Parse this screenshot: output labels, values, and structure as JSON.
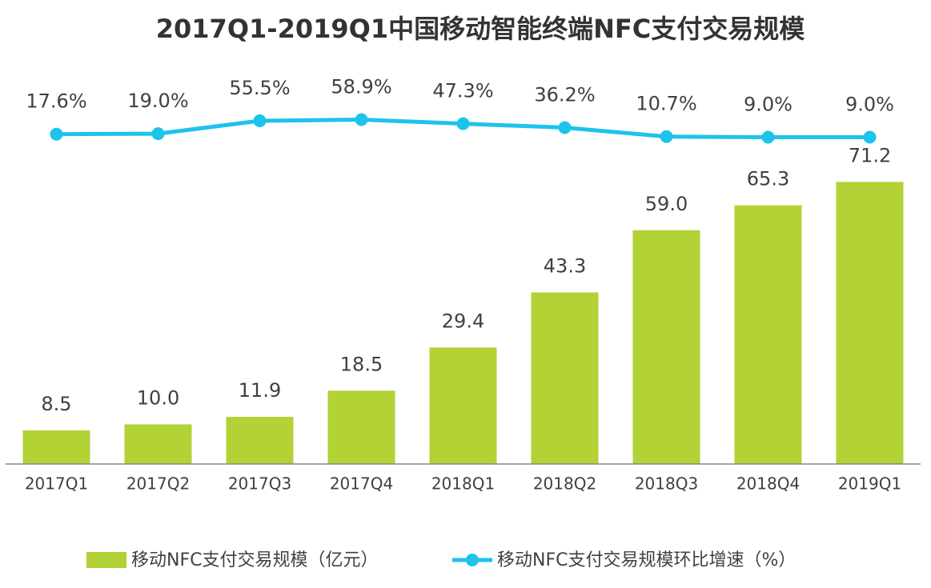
{
  "chart_data": {
    "type": "bar-line",
    "title": "2017Q1-2019Q1中国移动智能终端NFC支付交易规模",
    "categories": [
      "2017Q1",
      "2017Q2",
      "2017Q3",
      "2017Q4",
      "2018Q1",
      "2018Q2",
      "2018Q3",
      "2018Q4",
      "2019Q1"
    ],
    "series": [
      {
        "name": "移动NFC支付交易规模（亿元）",
        "type": "bar",
        "color": "#b2d235",
        "values": [
          8.5,
          10.0,
          11.9,
          18.5,
          29.4,
          43.3,
          59.0,
          65.3,
          71.2
        ],
        "value_labels": [
          "8.5",
          "10.0",
          "11.9",
          "18.5",
          "29.4",
          "43.3",
          "59.0",
          "65.3",
          "71.2"
        ]
      },
      {
        "name": "移动NFC支付交易规模环比增速（%）",
        "type": "line",
        "axis": "y2",
        "color": "#1dc3ec",
        "values": [
          17.6,
          19.0,
          55.5,
          58.9,
          47.3,
          36.2,
          10.7,
          9.0,
          9.0
        ],
        "value_labels": [
          "17.6%",
          "19.0%",
          "55.5%",
          "58.9%",
          "47.3%",
          "36.2%",
          "10.7%",
          "9.0%",
          "9.0%"
        ]
      }
    ],
    "ylim": [
      0,
      105
    ],
    "y2lim": [
      -918,
      262
    ],
    "legend": "bottom"
  }
}
